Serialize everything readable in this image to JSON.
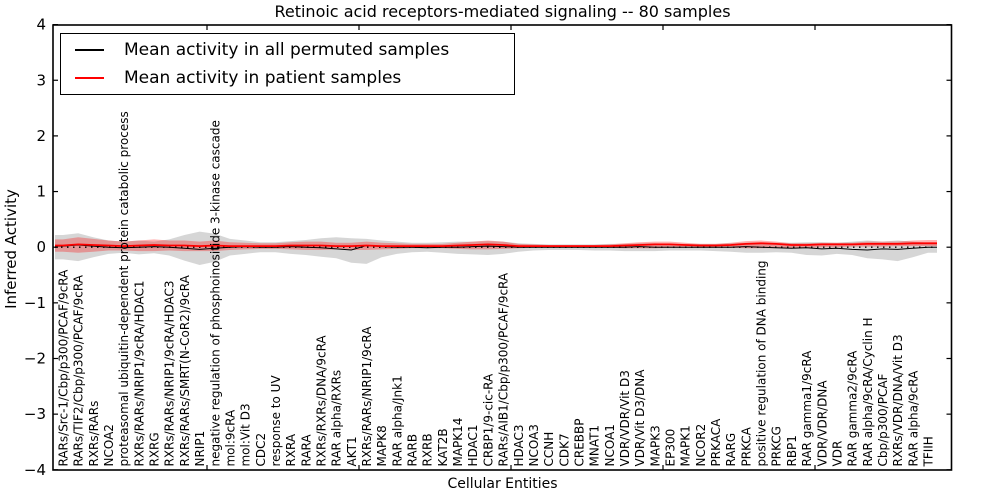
{
  "figure": {
    "title": "Retinoic acid receptors-mediated signaling -- 80 samples",
    "xlabel": "Cellular Entities",
    "ylabel": "Inferred Activity"
  },
  "legend": {
    "items": [
      {
        "label": "Mean activity in all permuted samples",
        "color": "#000000"
      },
      {
        "label": "Mean activity in patient samples",
        "color": "#ff0000"
      }
    ]
  },
  "chart_data": {
    "type": "line",
    "title": "Retinoic acid receptors-mediated signaling -- 80 samples",
    "xlabel": "Cellular Entities",
    "ylabel": "Inferred Activity",
    "ylim": [
      -4,
      4
    ],
    "y_ticks": [
      "4",
      "3",
      "2",
      "1",
      "0",
      "−1",
      "−2",
      "−3",
      "−4"
    ],
    "y_tick_values": [
      4,
      3,
      2,
      1,
      0,
      -1,
      -2,
      -3,
      -4
    ],
    "grid": false,
    "zero_reference_line": true,
    "legend_position": "upper left",
    "categories": [
      "RARs/Src-1/Cbp/p300/PCAF/9cRA",
      "RARs/TIF2/Cbp/p300/PCAF/9cRA",
      "RXRs/RARs",
      "NCOA2",
      "proteasomal ubiquitin-dependent protein catabolic process",
      "RXRs/RARs/NRIP1/9cRA/HDAC1",
      "RXRG",
      "RXRs/RARs/NRIP1/9cRA/HDAC3",
      "RXRs/RARs/SMRT(N-CoR2)/9cRA",
      "NRIP1",
      "negative regulation of phosphoinositide 3-kinase cascade",
      "mol:9cRA",
      "mol:Vit D3",
      "CDC2",
      "response to UV",
      "RXRA",
      "RARA",
      "RXRs/RXRs/DNA/9cRA",
      "RAR alpha/RXRs",
      "AKT1",
      "RXRs/RARs/NRIP1/9cRA",
      "MAPK8",
      "RAR alpha/Jnk1",
      "RARB",
      "RXRB",
      "KAT2B",
      "MAPK14",
      "HDAC1",
      "CRBP1/9-cic-RA",
      "RARs/AIB1/Cbp/p300/PCAF/9cRA",
      "HDAC3",
      "NCOA3",
      "CCNH",
      "CDK7",
      "CREBBP",
      "MNAT1",
      "NCOA1",
      "VDR/VDR/Vit D3",
      "VDR/Vit D3/DNA",
      "MAPK3",
      "EP300",
      "MAPK1",
      "NCOR2",
      "PRKACA",
      "RARG",
      "PRKCA",
      "positive regulation of DNA binding",
      "PRKCG",
      "RBP1",
      "RAR gamma1/9cRA",
      "VDR/VDR/DNA",
      "VDR",
      "RAR gamma2/9cRA",
      "RAR alpha/9cRA/Cyclin H",
      "Cbp/p300/PCAF",
      "RXRs/VDR/DNA/Vit D3",
      "RAR alpha/9cRA",
      "TFIIH"
    ],
    "series": [
      {
        "name": "Mean activity in all permuted samples",
        "color": "#000000",
        "values": [
          0.02,
          0.04,
          0.02,
          0.0,
          -0.01,
          0.0,
          0.01,
          0.0,
          -0.02,
          -0.04,
          -0.02,
          0.0,
          0.01,
          0.0,
          0.0,
          0.01,
          0.0,
          -0.01,
          -0.03,
          -0.05,
          0.03,
          0.01,
          0.0,
          0.0,
          -0.01,
          0.0,
          0.0,
          0.01,
          0.02,
          0.01,
          0.0,
          0.0,
          0.0,
          0.0,
          0.0,
          0.0,
          0.0,
          0.0,
          0.01,
          0.0,
          0.0,
          0.0,
          0.0,
          0.0,
          0.0,
          0.01,
          0.0,
          -0.01,
          -0.02,
          -0.01,
          -0.03,
          -0.02,
          -0.04,
          -0.05,
          -0.03,
          -0.04,
          -0.02,
          0.0
        ]
      },
      {
        "name": "Mean activity in patient samples",
        "color": "#ff0000",
        "values": [
          0.03,
          0.05,
          0.04,
          0.03,
          0.02,
          0.03,
          0.04,
          0.03,
          0.03,
          0.02,
          0.03,
          0.02,
          0.02,
          0.02,
          0.02,
          0.03,
          0.03,
          0.03,
          0.02,
          0.02,
          0.03,
          0.02,
          0.02,
          0.02,
          0.02,
          0.02,
          0.03,
          0.04,
          0.05,
          0.04,
          0.02,
          0.02,
          0.02,
          0.02,
          0.02,
          0.02,
          0.02,
          0.03,
          0.04,
          0.05,
          0.05,
          0.04,
          0.03,
          0.03,
          0.04,
          0.06,
          0.07,
          0.06,
          0.04,
          0.04,
          0.05,
          0.05,
          0.05,
          0.06,
          0.06,
          0.06,
          0.07,
          0.07
        ]
      }
    ],
    "bands": [
      {
        "series": "Mean activity in all permuted samples",
        "color": "#000000",
        "opacity": 0.16,
        "upper": [
          0.22,
          0.25,
          0.18,
          0.12,
          0.1,
          0.12,
          0.1,
          0.14,
          0.22,
          0.28,
          0.24,
          0.15,
          0.12,
          0.09,
          0.09,
          0.11,
          0.13,
          0.16,
          0.18,
          0.16,
          0.15,
          0.12,
          0.1,
          0.08,
          0.08,
          0.09,
          0.1,
          0.1,
          0.11,
          0.1,
          0.07,
          0.06,
          0.05,
          0.05,
          0.05,
          0.05,
          0.06,
          0.06,
          0.07,
          0.07,
          0.06,
          0.06,
          0.06,
          0.06,
          0.07,
          0.08,
          0.08,
          0.08,
          0.08,
          0.09,
          0.09,
          0.08,
          0.1,
          0.12,
          0.1,
          0.12,
          0.1,
          0.08
        ],
        "lower": [
          -0.22,
          -0.25,
          -0.18,
          -0.12,
          -0.1,
          -0.13,
          -0.11,
          -0.15,
          -0.24,
          -0.32,
          -0.26,
          -0.15,
          -0.12,
          -0.09,
          -0.09,
          -0.12,
          -0.14,
          -0.17,
          -0.2,
          -0.28,
          -0.3,
          -0.18,
          -0.12,
          -0.09,
          -0.08,
          -0.1,
          -0.12,
          -0.13,
          -0.14,
          -0.12,
          -0.08,
          -0.06,
          -0.05,
          -0.05,
          -0.05,
          -0.06,
          -0.06,
          -0.07,
          -0.07,
          -0.07,
          -0.06,
          -0.06,
          -0.06,
          -0.07,
          -0.08,
          -0.1,
          -0.1,
          -0.09,
          -0.1,
          -0.14,
          -0.15,
          -0.12,
          -0.14,
          -0.2,
          -0.22,
          -0.25,
          -0.18,
          -0.1
        ]
      },
      {
        "series": "Mean activity in patient samples",
        "color": "#ff0000",
        "opacity": 0.3,
        "upper": [
          0.14,
          0.18,
          0.15,
          0.12,
          0.1,
          0.12,
          0.14,
          0.12,
          0.12,
          0.1,
          0.12,
          0.09,
          0.08,
          0.07,
          0.07,
          0.09,
          0.1,
          0.1,
          0.08,
          0.08,
          0.1,
          0.08,
          0.07,
          0.06,
          0.06,
          0.06,
          0.08,
          0.1,
          0.12,
          0.1,
          0.06,
          0.05,
          0.04,
          0.04,
          0.04,
          0.04,
          0.05,
          0.07,
          0.09,
          0.1,
          0.1,
          0.08,
          0.06,
          0.06,
          0.08,
          0.11,
          0.12,
          0.1,
          0.07,
          0.07,
          0.08,
          0.08,
          0.08,
          0.1,
          0.1,
          0.1,
          0.12,
          0.13
        ],
        "lower": [
          -0.08,
          -0.1,
          -0.08,
          -0.06,
          -0.06,
          -0.07,
          -0.07,
          -0.06,
          -0.07,
          -0.07,
          -0.07,
          -0.05,
          -0.04,
          -0.03,
          -0.03,
          -0.04,
          -0.05,
          -0.05,
          -0.04,
          -0.05,
          -0.05,
          -0.04,
          -0.03,
          -0.02,
          -0.02,
          -0.02,
          -0.03,
          -0.04,
          -0.04,
          -0.03,
          -0.02,
          -0.01,
          -0.01,
          -0.01,
          -0.01,
          -0.01,
          -0.01,
          -0.02,
          -0.02,
          -0.02,
          -0.01,
          -0.01,
          -0.01,
          -0.01,
          -0.01,
          -0.02,
          -0.02,
          -0.02,
          -0.01,
          -0.01,
          0.0,
          0.0,
          0.01,
          0.01,
          0.01,
          0.02,
          0.02,
          0.02
        ]
      }
    ]
  }
}
